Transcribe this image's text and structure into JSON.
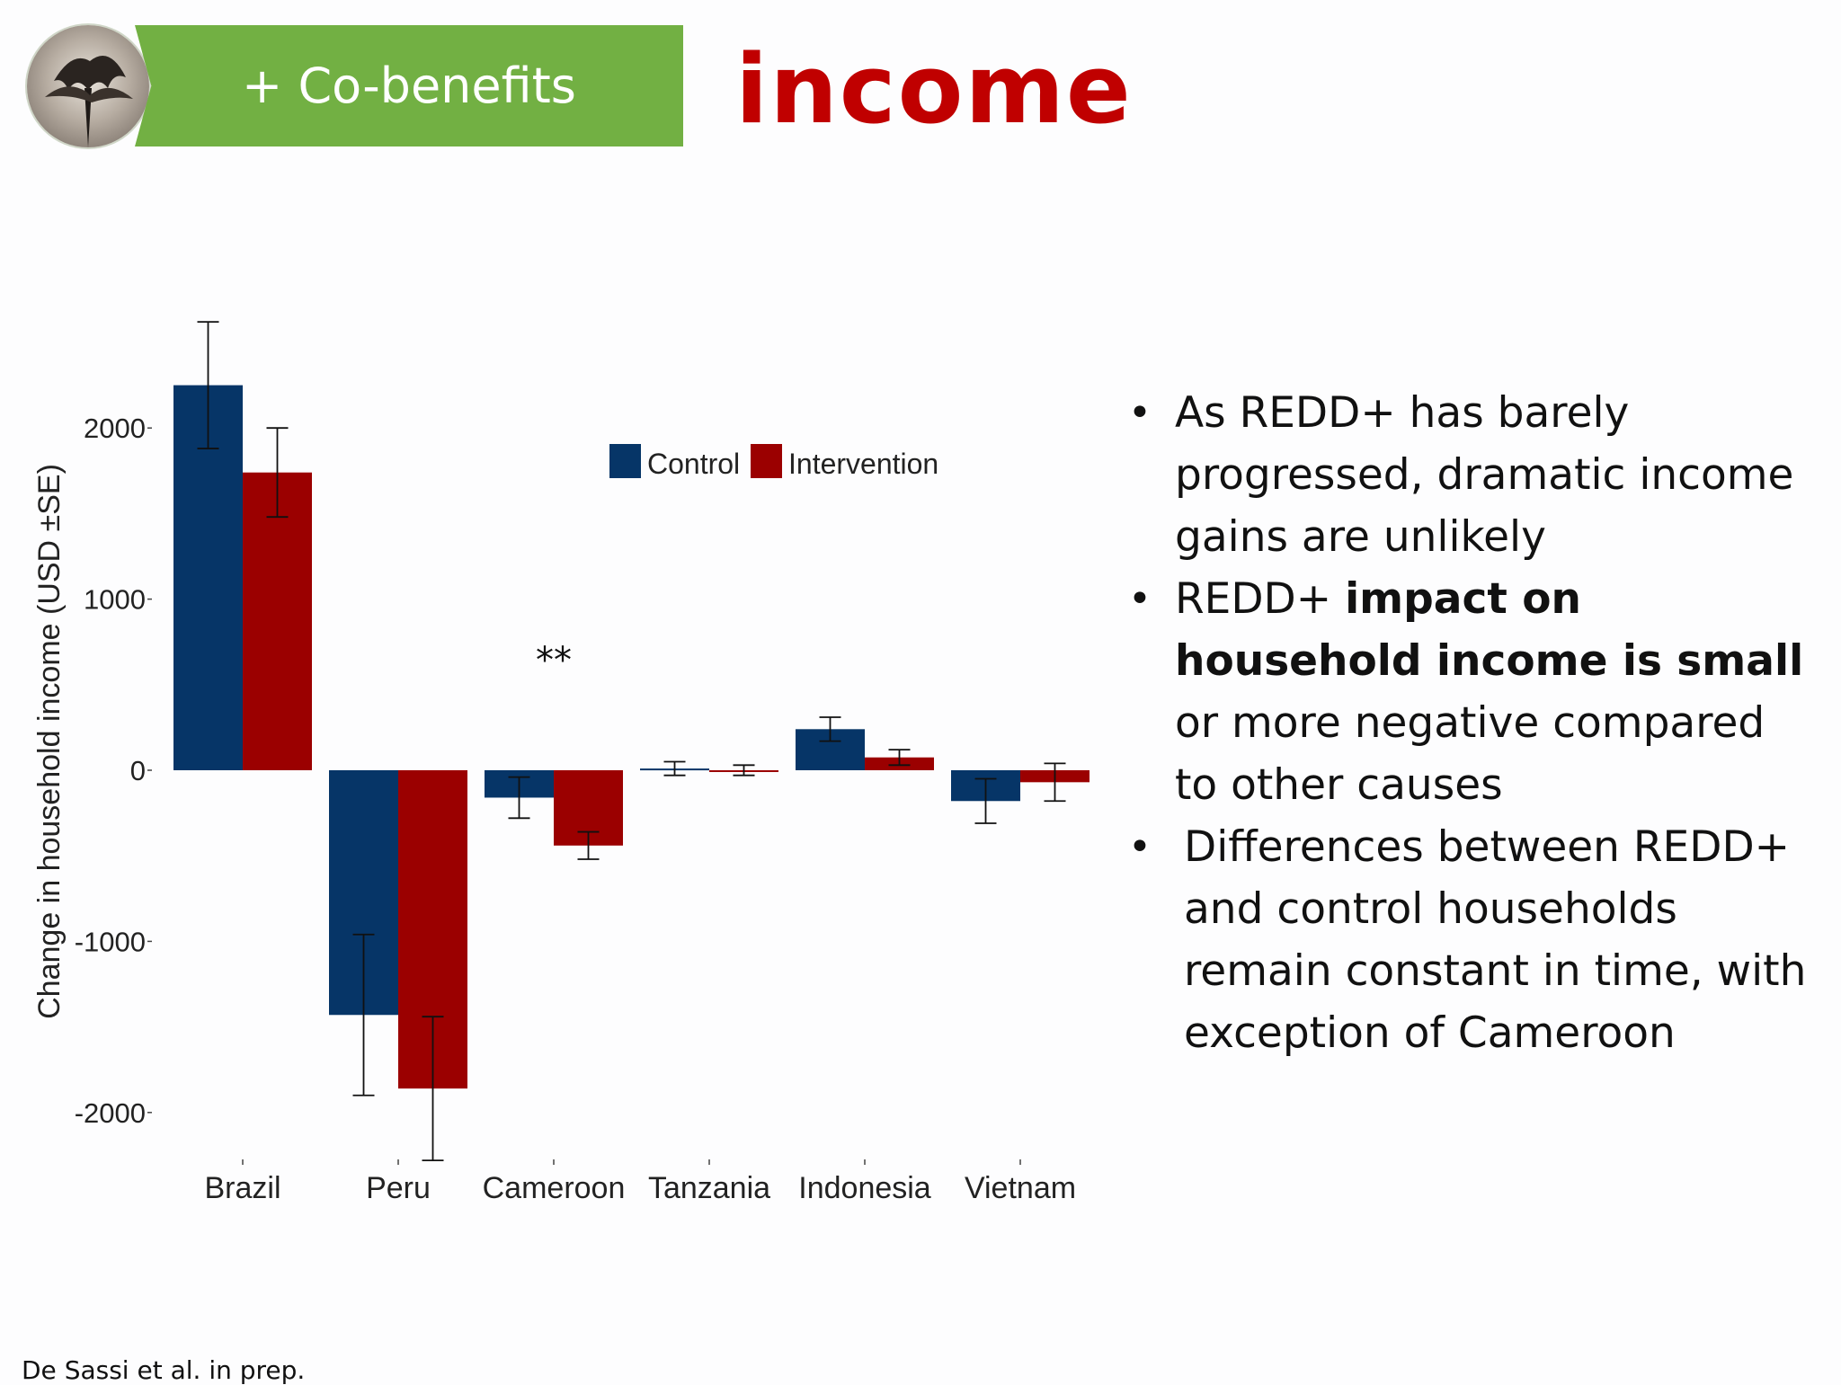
{
  "header": {
    "banner_label": "+ Co-benefits",
    "title": "income"
  },
  "bullets": [
    {
      "text": "As REDD+ has barely progressed, dramatic income gains are unlikely"
    },
    {
      "text_before": "REDD+ ",
      "text_bold": "impact on household income is small",
      "text_after": " or more negative compared to other causes"
    },
    {
      "text": "Differences between REDD+ and control households remain constant in time, with exception of Cameroon"
    }
  ],
  "footer": {
    "source": "De Sassi et al. in prep."
  },
  "colors": {
    "control": "#063567",
    "intervention": "#9b0000",
    "banner": "#72b043",
    "title": "#c00000"
  },
  "chart_data": {
    "type": "bar",
    "categories": [
      "Brazil",
      "Peru",
      "Cameroon",
      "Tanzania",
      "Indonesia",
      "Vietnam"
    ],
    "series": [
      {
        "name": "Control",
        "values": [
          2250,
          -1430,
          -160,
          10,
          240,
          -180
        ],
        "se": [
          370,
          470,
          120,
          40,
          70,
          130
        ]
      },
      {
        "name": "Intervention",
        "values": [
          1740,
          -1860,
          -440,
          0,
          75,
          -70
        ],
        "se": [
          260,
          420,
          80,
          30,
          45,
          110
        ]
      }
    ],
    "ylabel": "Change in household income (USD ±SE)",
    "yticks": [
      2000,
      1000,
      0,
      -1000,
      -2000
    ],
    "ylim": [
      -2250,
      2750
    ],
    "annotation": {
      "text": "**",
      "category": "Cameroon"
    },
    "legend": "top-center"
  }
}
